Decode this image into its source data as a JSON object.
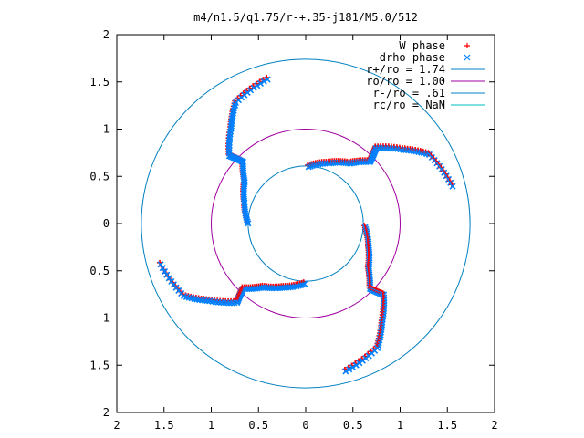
{
  "chart_data": {
    "type": "scatter",
    "title": "m4/n1.5/q1.75/r-+.35-j181/M5.0/512",
    "xlabel": "",
    "ylabel": "",
    "xlim": [
      -2,
      2
    ],
    "ylim": [
      -2,
      2
    ],
    "grid": false,
    "legend_position": "top-right",
    "x_tick_labels": [
      "2",
      "1.5",
      "1",
      "0.5",
      "0",
      "0.5",
      "1",
      "1.5",
      "2"
    ],
    "y_tick_labels": [
      "2",
      "1.5",
      "1",
      "0.5",
      "0",
      "0.5",
      "1",
      "1.5",
      "2"
    ],
    "x_ticks": [
      -2,
      -1.5,
      -1,
      -0.5,
      0,
      0.5,
      1,
      1.5,
      2
    ],
    "y_ticks": [
      2,
      1.5,
      1,
      0.5,
      0,
      -0.5,
      -1,
      -1.5,
      -2
    ],
    "series": [
      {
        "name": "W phase",
        "kind": "points",
        "marker": "+",
        "color": "#ff0000"
      },
      {
        "name": "drho phase",
        "kind": "points",
        "marker": "x",
        "color": "#0080ff"
      },
      {
        "name": "r+/ro = 1.74",
        "kind": "circle",
        "radius": 1.74,
        "color": "#0080c0"
      },
      {
        "name": "ro/ro = 1.00",
        "kind": "circle",
        "radius": 1.0,
        "color": "#a000a0"
      },
      {
        "name": "r-/ro = .61",
        "kind": "circle",
        "radius": 0.61,
        "color": "#0080c0"
      },
      {
        "name": "rc/ro = NaN",
        "kind": "circle",
        "radius": null,
        "color": "#00c0c0"
      }
    ],
    "spiral_arms": [
      {
        "r": [
          0.62,
          0.7,
          0.8,
          0.95,
          1.1,
          1.3,
          1.5,
          1.6
        ],
        "theta_deg": [
          88,
          70,
          55,
          45,
          48,
          38,
          30,
          15
        ]
      },
      {
        "r": [
          0.62,
          0.7,
          0.8,
          0.95,
          1.1,
          1.3,
          1.5,
          1.6
        ],
        "theta_deg": [
          178,
          160,
          145,
          135,
          138,
          128,
          120,
          105
        ]
      },
      {
        "r": [
          0.62,
          0.7,
          0.8,
          0.95,
          1.1,
          1.3,
          1.5,
          1.6
        ],
        "theta_deg": [
          268,
          250,
          235,
          225,
          228,
          218,
          210,
          195
        ]
      },
      {
        "r": [
          0.62,
          0.7,
          0.8,
          0.95,
          1.1,
          1.3,
          1.5,
          1.6
        ],
        "theta_deg": [
          358,
          340,
          325,
          315,
          318,
          308,
          300,
          285
        ]
      }
    ]
  }
}
